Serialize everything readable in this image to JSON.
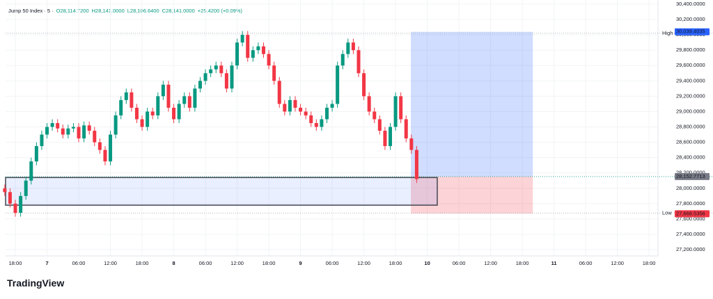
{
  "chart_data": {
    "type": "candlestick",
    "title": "Jump 50 Index · 5 ·",
    "ohlc_labels": [
      "O28,114.7200",
      "H28,141.0000",
      "L28,106.6400",
      "C28,141.0000",
      "+25.4200 (+0.09%)"
    ],
    "up_color": "#089981",
    "down_color": "#f23645",
    "x": [
      -2,
      -1,
      0,
      1,
      2,
      3,
      4,
      5,
      6,
      7,
      8,
      9,
      10,
      11,
      12,
      13,
      14,
      15,
      16,
      17,
      18,
      19,
      20,
      21,
      22,
      23,
      24,
      25,
      26,
      27,
      28,
      29,
      30,
      31,
      32,
      33,
      34,
      35,
      36,
      37,
      38,
      39,
      40,
      41,
      42,
      43,
      44,
      45,
      46,
      47,
      48,
      49,
      50,
      51,
      52,
      53,
      54,
      55,
      56,
      57,
      58,
      59,
      60,
      61,
      62,
      63,
      64,
      65,
      66,
      67,
      68,
      69,
      70,
      71,
      72,
      73,
      74,
      75,
      76
    ],
    "open": [
      28000,
      27950,
      27800,
      27680,
      27900,
      28100,
      28350,
      28550,
      28700,
      28800,
      28850,
      28780,
      28700,
      28780,
      28800,
      28650,
      28820,
      28750,
      28600,
      28500,
      28350,
      28700,
      28950,
      29150,
      29250,
      29050,
      28900,
      28800,
      29000,
      28950,
      29200,
      29350,
      29050,
      28900,
      29100,
      29200,
      29050,
      29300,
      29400,
      29500,
      29550,
      29600,
      29500,
      29300,
      29600,
      29900,
      30000,
      29700,
      29800,
      29850,
      29750,
      29600,
      29400,
      29100,
      29000,
      29150,
      29050,
      29000,
      28950,
      28850,
      28800,
      28900,
      29050,
      29100,
      29600,
      29750,
      29900,
      29800,
      29500,
      29200,
      29000,
      28900,
      28750,
      28550,
      28800,
      29200,
      28900,
      28650,
      28500
    ],
    "high": [
      28050,
      28000,
      27850,
      27950,
      28150,
      28400,
      28600,
      28750,
      28850,
      28900,
      28900,
      28830,
      28830,
      28850,
      28850,
      28870,
      28870,
      28800,
      28650,
      28550,
      28750,
      29000,
      29200,
      29300,
      29300,
      29100,
      28950,
      29050,
      29050,
      29250,
      29400,
      29400,
      29100,
      29150,
      29250,
      29250,
      29350,
      29450,
      29550,
      29600,
      29650,
      29650,
      29550,
      29650,
      29950,
      30050,
      30050,
      29850,
      29900,
      29900,
      29800,
      29650,
      29450,
      29150,
      29200,
      29200,
      29100,
      29050,
      29000,
      28900,
      28950,
      29100,
      29150,
      29650,
      29800,
      29950,
      29950,
      29850,
      29550,
      29250,
      29050,
      28950,
      28800,
      28850,
      29250,
      29250,
      28950,
      28700,
      28550
    ],
    "low": [
      27900,
      27750,
      27630,
      27630,
      27850,
      28050,
      28300,
      28500,
      28650,
      28750,
      28730,
      28650,
      28650,
      28730,
      28600,
      28600,
      28700,
      28550,
      28450,
      28300,
      28300,
      28650,
      28900,
      29100,
      29000,
      28850,
      28750,
      28750,
      28900,
      28900,
      29150,
      29000,
      28850,
      28850,
      29050,
      29000,
      29000,
      29250,
      29350,
      29450,
      29500,
      29450,
      29250,
      29250,
      29550,
      29850,
      29650,
      29650,
      29750,
      29700,
      29550,
      29350,
      29050,
      28950,
      28950,
      29000,
      28950,
      28900,
      28800,
      28750,
      28750,
      28850,
      29000,
      29050,
      29550,
      29700,
      29750,
      29450,
      29150,
      28950,
      28850,
      28700,
      28500,
      28500,
      28750,
      28850,
      28600,
      28450,
      28070
    ],
    "close": [
      27950,
      27800,
      27680,
      27900,
      28100,
      28350,
      28550,
      28700,
      28800,
      28850,
      28780,
      28700,
      28780,
      28800,
      28650,
      28820,
      28750,
      28600,
      28500,
      28350,
      28700,
      28950,
      29150,
      29250,
      29050,
      28900,
      28800,
      29000,
      28950,
      29200,
      29350,
      29050,
      28900,
      29100,
      29200,
      29050,
      29300,
      29400,
      29500,
      29550,
      29600,
      29500,
      29300,
      29600,
      29900,
      30000,
      29700,
      29800,
      29850,
      29750,
      29600,
      29400,
      29100,
      29000,
      29150,
      29050,
      29000,
      28950,
      28850,
      28800,
      28900,
      29050,
      29100,
      29600,
      29750,
      29900,
      29800,
      29500,
      29200,
      29000,
      28900,
      28750,
      28550,
      28800,
      29200,
      28900,
      28650,
      28500,
      28120
    ],
    "xlim": [
      -1.85,
      121.7
    ],
    "xticks": [
      {
        "value": 0,
        "label": "18:00"
      },
      {
        "value": 6,
        "label": "7"
      },
      {
        "value": 12,
        "label": "06:00"
      },
      {
        "value": 18,
        "label": "12:00"
      },
      {
        "value": 24,
        "label": "18:00"
      },
      {
        "value": 30,
        "label": "8"
      },
      {
        "value": 36,
        "label": "06:00"
      },
      {
        "value": 42,
        "label": "12:00"
      },
      {
        "value": 48,
        "label": "18:00"
      },
      {
        "value": 54,
        "label": "9"
      },
      {
        "value": 60,
        "label": "06:00"
      },
      {
        "value": 66,
        "label": "12:00"
      },
      {
        "value": 72,
        "label": "18:00"
      },
      {
        "value": 78,
        "label": "10"
      },
      {
        "value": 84,
        "label": "06:00"
      },
      {
        "value": 90,
        "label": "12:00"
      },
      {
        "value": 96,
        "label": "18:00"
      },
      {
        "value": 102,
        "label": "11"
      },
      {
        "value": 108,
        "label": "06:00"
      },
      {
        "value": 114,
        "label": "12:00"
      },
      {
        "value": 120,
        "label": "18:00"
      }
    ],
    "ylim": [
      27119,
      30454
    ],
    "yticks": [
      {
        "value": 27200,
        "label": "27,200.0000"
      },
      {
        "value": 27400,
        "label": "27,400.0000"
      },
      {
        "value": 27600,
        "label": "27,600.0000"
      },
      {
        "value": 27800,
        "label": "27,800.0000"
      },
      {
        "value": 28000,
        "label": "28,000.0000"
      },
      {
        "value": 28200,
        "label": "28,200.0000"
      },
      {
        "value": 28400,
        "label": "28,400.0000"
      },
      {
        "value": 28600,
        "label": "28,600.0000"
      },
      {
        "value": 28800,
        "label": "28,800.0000"
      },
      {
        "value": 29000,
        "label": "29,000.0000"
      },
      {
        "value": 29200,
        "label": "29,200.0000"
      },
      {
        "value": 29400,
        "label": "29,400.0000"
      },
      {
        "value": 29600,
        "label": "29,600.0000"
      },
      {
        "value": 29800,
        "label": "29,800.0000"
      },
      {
        "value": 30000,
        "label": "30,000.0000"
      },
      {
        "value": 30200,
        "label": "30,200.0000"
      },
      {
        "value": 30400,
        "label": "30,400.0000"
      }
    ],
    "grid": true,
    "zone": {
      "x": [
        -1.85,
        79.9
      ],
      "y": [
        27780,
        28140
      ]
    },
    "position": {
      "x": [
        74.9,
        98
      ],
      "target": {
        "value": 30039.4035,
        "label": "30,039.4035"
      },
      "entry": {
        "value": 28152.7713,
        "label": "28,152.7713"
      },
      "stop": {
        "value": 27668.5356,
        "label": "27,668.5356"
      }
    },
    "levels": [
      {
        "name": "High",
        "value": 30021.08,
        "label": "30,021.0800"
      },
      {
        "name": "Low",
        "value": 27677.12,
        "label": "27,677.1200"
      }
    ]
  },
  "logo": "TradingView"
}
